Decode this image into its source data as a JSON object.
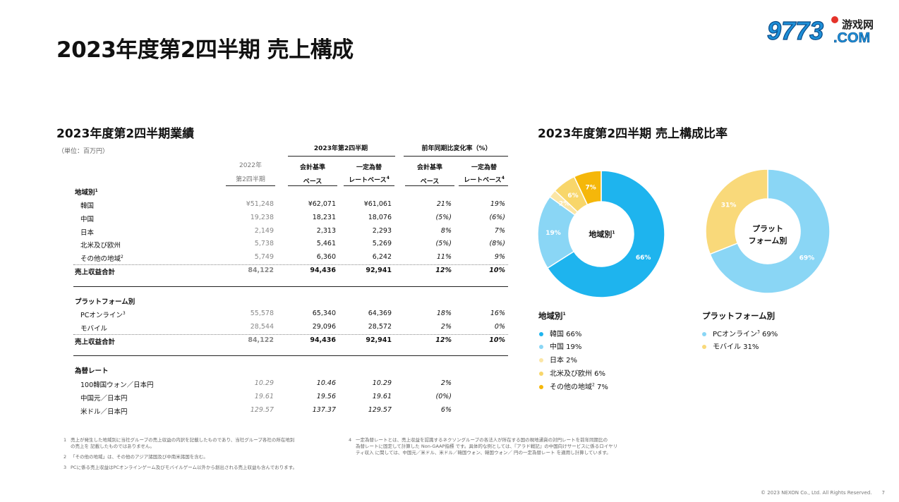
{
  "page_title": "2023年度第2四半期 売上構成",
  "logo": {
    "text": "9773",
    "subtext": "游戏网",
    "domain": ".COM"
  },
  "table": {
    "title": "2023年度第2四半期業績",
    "unit": "（単位：百万円）",
    "header": {
      "group1": "2023年第2四半期",
      "group2": "前年同期比変化率（%）",
      "col1_line1": "2022年",
      "col1_line2": "第2四半期",
      "col2_line1": "会計基準",
      "col2_line2": "ベース",
      "col3_line1": "一定為替",
      "col3_line2": "レートベース",
      "col3_sup": "4",
      "col4_line1": "会計基準",
      "col4_line2": "ベース",
      "col5_line1": "一定為替",
      "col5_line2": "レートベース",
      "col5_sup": "4"
    },
    "region_group": {
      "label": "地域別",
      "sup": "1"
    },
    "region_rows": [
      {
        "label": "韓国",
        "v1": "¥51,248",
        "v2": "¥62,071",
        "v3": "¥61,061",
        "v4": "21%",
        "v5": "19%"
      },
      {
        "label": "中国",
        "v1": "19,238",
        "v2": "18,231",
        "v3": "18,076",
        "v4": "(5%)",
        "v5": "(6%)"
      },
      {
        "label": "日本",
        "v1": "2,149",
        "v2": "2,313",
        "v3": "2,293",
        "v4": "8%",
        "v5": "7%"
      },
      {
        "label": "北米及び欧州",
        "v1": "5,738",
        "v2": "5,461",
        "v3": "5,269",
        "v4": "(5%)",
        "v5": "(8%)"
      },
      {
        "label": "その他の地域",
        "sup": "2",
        "v1": "5,749",
        "v2": "6,360",
        "v3": "6,242",
        "v4": "11%",
        "v5": "9%"
      }
    ],
    "region_total": {
      "label": "売上収益合計",
      "v1": "84,122",
      "v2": "94,436",
      "v3": "92,941",
      "v4": "12%",
      "v5": "10%"
    },
    "platform_group": {
      "label": "プラットフォーム別"
    },
    "platform_rows": [
      {
        "label": "PCオンライン",
        "sup": "3",
        "v1": "55,578",
        "v2": "65,340",
        "v3": "64,369",
        "v4": "18%",
        "v5": "16%"
      },
      {
        "label": "モバイル",
        "v1": "28,544",
        "v2": "29,096",
        "v3": "28,572",
        "v4": "2%",
        "v5": "0%"
      }
    ],
    "platform_total": {
      "label": "売上収益合計",
      "v1": "84,122",
      "v2": "94,436",
      "v3": "92,941",
      "v4": "12%",
      "v5": "10%"
    },
    "fx_group": {
      "label": "為替レート"
    },
    "fx_rows": [
      {
        "label": "100韓国ウォン／日本円",
        "v1": "10.29",
        "v2": "10.46",
        "v3": "10.29",
        "v4": "2%"
      },
      {
        "label": "中国元／日本円",
        "v1": "19.61",
        "v2": "19.56",
        "v3": "19.61",
        "v4": "(0%)"
      },
      {
        "label": "米ドル／日本円",
        "v1": "129.57",
        "v2": "137.37",
        "v3": "129.57",
        "v4": "6%"
      }
    ]
  },
  "chart_section_title": "2023年度第2四半期 売上構成比率",
  "chart_data": [
    {
      "type": "pie",
      "title": "地域別",
      "title_sup": "1",
      "center_label": "地域別",
      "categories": [
        "韓国",
        "中国",
        "日本",
        "北米及び欧州",
        "その他の地域"
      ],
      "values": [
        66,
        19,
        2,
        6,
        7
      ],
      "colors": [
        "#1eb4ee",
        "#8ad6f5",
        "#fbe6a6",
        "#f8d66a",
        "#f5b70a"
      ],
      "label_colors": [
        "#ffffff",
        "#ffffff",
        "#ffffff",
        "#ffffff",
        "#ffffff"
      ],
      "data_labels": [
        "66%",
        "19%",
        "2%",
        "6%",
        "7%"
      ],
      "legend": [
        {
          "text": "韓国 66%"
        },
        {
          "text": "中国 19%"
        },
        {
          "text": "日本 2%"
        },
        {
          "text": "北米及び欧州 6%"
        },
        {
          "text": "その他の地域",
          "sup": "2",
          "after": " 7%"
        }
      ]
    },
    {
      "type": "pie",
      "title": "プラットフォーム別",
      "center_label_line1": "プラット",
      "center_label_line2": "フォーム別",
      "categories": [
        "PCオンライン",
        "モバイル"
      ],
      "values": [
        69,
        31
      ],
      "colors": [
        "#8ad6f5",
        "#f9d97a"
      ],
      "data_labels": [
        "69%",
        "31%"
      ],
      "legend": [
        {
          "text": "PCオンライン",
          "sup": "3",
          "after": " 69%"
        },
        {
          "text": "モバイル 31%"
        }
      ]
    }
  ],
  "footnotes": {
    "f1_num": "1",
    "f1_line1": "売上が発生した地域別に当社グループの売上収益の内訳を記載したものであり、当社グループ各社の所在地別",
    "f1_line2": "の売上を 記載したものではありません。",
    "f2_num": "2",
    "f2_text": "「その他の地域」は、その他のアジア諸国及び中南米諸国を含む。",
    "f3_num": "3",
    "f3_text": "PCに係る売上収益はPCオンラインゲーム及びモバイルゲーム以外から創出される売上収益も含んでおります。",
    "f4_num": "4",
    "f4_line1": "一定為替レートとは、売上収益を認識するネクソングループの各法人が所在する国の現地通貨の対円レートを前年同期比の",
    "f4_line2": "為替レートに固定して計算した Non-GAAP指標 です。具体的な例としては、『アラド戦記』の中国向けサービスに係るロイヤリ",
    "f4_line3": "ティ収入 に関しては、中国元／米ドル、米ドル／韓国ウォン、韓国ウォン／ 円の一定為替レート を適用し計算しています。"
  },
  "copyright": "© 2023 NEXON Co., Ltd. All Rights Reserved.",
  "page_number": "7"
}
